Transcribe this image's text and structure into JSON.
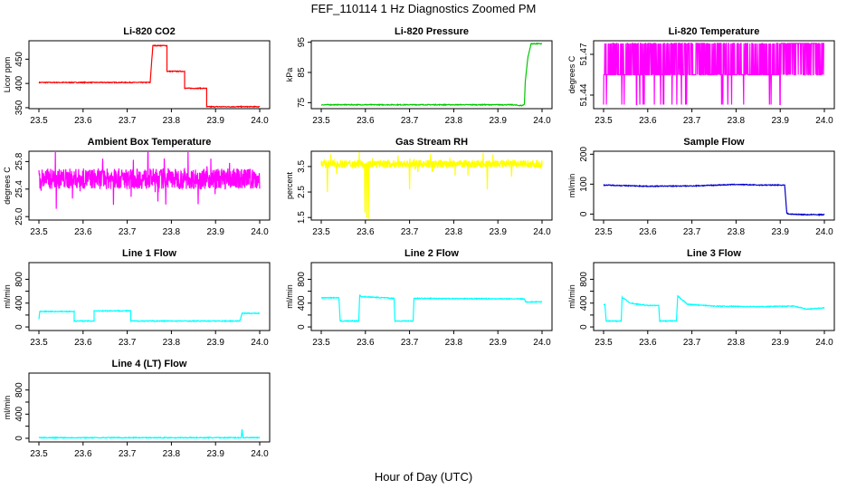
{
  "figure": {
    "title": "FEF_110114  1 Hz Diagnostics Zoomed PM",
    "xlabel": "Hour of Day (UTC)"
  },
  "chart_data": [
    {
      "type": "line",
      "title": "Li-820 CO2",
      "ylabel": "Licor ppm",
      "color": "#ff0000",
      "xlim": [
        23.5,
        24.0
      ],
      "ylim": [
        348,
        488
      ],
      "xticks": [
        23.5,
        23.6,
        23.7,
        23.8,
        23.9,
        24.0
      ],
      "yticks": [
        350,
        400,
        450
      ],
      "ytick_labels": [
        "350",
        "400",
        "450"
      ],
      "series": [
        {
          "x": [
            23.5,
            23.752,
            23.752,
            23.758,
            23.758,
            23.79,
            23.79,
            23.83,
            23.83,
            23.88,
            23.88,
            24.0
          ],
          "y": [
            402,
            402,
            402,
            478,
            478,
            478,
            425,
            425,
            390,
            390,
            352,
            352
          ]
        }
      ]
    },
    {
      "type": "line",
      "title": "Li-820 Pressure",
      "ylabel": "kPa",
      "color": "#00c800",
      "xlim": [
        23.5,
        24.0
      ],
      "ylim": [
        73,
        95.5
      ],
      "xticks": [
        23.5,
        23.6,
        23.7,
        23.8,
        23.9,
        24.0
      ],
      "yticks": [
        75,
        85,
        95
      ],
      "ytick_labels": [
        "75",
        "85",
        "95"
      ],
      "series": [
        {
          "x": [
            23.5,
            23.9,
            23.93,
            23.955,
            23.96,
            23.962,
            23.968,
            23.975,
            24.0
          ],
          "y": [
            74.3,
            74.3,
            74.3,
            74.0,
            74.5,
            82,
            90,
            94.5,
            94.5
          ]
        }
      ]
    },
    {
      "type": "line",
      "title": "Li-820 Temperature",
      "ylabel": "degrees C",
      "color": "#ff00ff",
      "xlim": [
        23.5,
        24.0
      ],
      "ylim": [
        51.43,
        51.48
      ],
      "xticks": [
        23.5,
        23.6,
        23.7,
        23.8,
        23.9,
        24.0
      ],
      "yticks": [
        51.44,
        51.47
      ],
      "ytick_labels": [
        "51.44",
        "51.47"
      ],
      "base": 51.455,
      "upper": 51.478,
      "lower": 51.433,
      "series": [
        {
          "x": [
            23.5,
            24.0
          ],
          "y": [
            51.455,
            51.455
          ]
        }
      ]
    },
    {
      "type": "line",
      "title": "Ambient Box Temperature",
      "ylabel": "degrees C",
      "color": "#ff00ff",
      "xlim": [
        23.5,
        24.0
      ],
      "ylim": [
        24.95,
        25.95
      ],
      "xticks": [
        23.5,
        23.6,
        23.7,
        23.8,
        23.9,
        24.0
      ],
      "yticks": [
        25.0,
        25.4,
        25.8
      ],
      "ytick_labels": [
        "25.0",
        "25.4",
        "25.8"
      ],
      "base": 25.55,
      "noise": 0.15,
      "series": [
        {
          "x": [
            23.5,
            24.0
          ],
          "y": [
            25.55,
            25.55
          ]
        }
      ]
    },
    {
      "type": "line",
      "title": "Gas Stream RH",
      "ylabel": "percent",
      "color": "#ffff00",
      "xlim": [
        23.5,
        24.0
      ],
      "ylim": [
        1.4,
        4.1
      ],
      "xticks": [
        23.5,
        23.6,
        23.7,
        23.8,
        23.9,
        24.0
      ],
      "yticks": [
        1.5,
        2.5,
        3.5
      ],
      "ytick_labels": [
        "1.5",
        "2.5",
        "3.5"
      ],
      "base": 3.6,
      "noise": 0.15,
      "series": [
        {
          "x": [
            23.5,
            24.0
          ],
          "y": [
            3.6,
            3.6
          ]
        }
      ],
      "dips": [
        {
          "x": 23.513,
          "y": 2.5
        },
        {
          "x": 23.598,
          "y": 1.7
        },
        {
          "x": 23.602,
          "y": 1.5
        },
        {
          "x": 23.606,
          "y": 1.45
        },
        {
          "x": 23.699,
          "y": 2.6
        },
        {
          "x": 23.875,
          "y": 2.6
        },
        {
          "x": 23.93,
          "y": 3.1
        }
      ]
    },
    {
      "type": "line",
      "title": "Sample Flow",
      "ylabel": "ml/min",
      "color": "#0000cc",
      "xlim": [
        23.5,
        24.0
      ],
      "ylim": [
        -20,
        210
      ],
      "xticks": [
        23.5,
        23.6,
        23.7,
        23.8,
        23.9,
        24.0
      ],
      "yticks": [
        0,
        100,
        200
      ],
      "ytick_labels": [
        "0",
        "100",
        "200"
      ],
      "series": [
        {
          "x": [
            23.5,
            23.6,
            23.7,
            23.8,
            23.85,
            23.91,
            23.915,
            23.92,
            23.96,
            24.0
          ],
          "y": [
            97,
            93,
            94,
            99,
            97,
            97,
            3,
            0,
            -2,
            -2
          ]
        }
      ]
    },
    {
      "type": "line",
      "title": "Line 1 Flow",
      "ylabel": "ml/min",
      "color": "#00ffff",
      "xlim": [
        23.5,
        24.0
      ],
      "ylim": [
        -60,
        1080
      ],
      "xticks": [
        23.5,
        23.6,
        23.7,
        23.8,
        23.9,
        24.0
      ],
      "yticks": [
        0,
        200,
        400,
        600,
        800
      ],
      "ytick_labels": [
        "0",
        "400",
        "800"
      ],
      "series": [
        {
          "x": [
            23.5,
            23.502,
            23.58,
            23.58,
            23.625,
            23.625,
            23.708,
            23.708,
            23.955,
            23.96,
            24.0
          ],
          "y": [
            130,
            260,
            260,
            100,
            100,
            270,
            270,
            100,
            100,
            230,
            230
          ]
        }
      ]
    },
    {
      "type": "line",
      "title": "Line 2 Flow",
      "ylabel": "ml/min",
      "color": "#00ffff",
      "xlim": [
        23.5,
        24.0
      ],
      "ylim": [
        -60,
        1080
      ],
      "xticks": [
        23.5,
        23.6,
        23.7,
        23.8,
        23.9,
        24.0
      ],
      "yticks": [
        0,
        200,
        400,
        600,
        800
      ],
      "ytick_labels": [
        "0",
        "400",
        "800"
      ],
      "series": [
        {
          "x": [
            23.5,
            23.54,
            23.543,
            23.585,
            23.587,
            23.59,
            23.665,
            23.667,
            23.708,
            23.71,
            23.96,
            23.963,
            24.0
          ],
          "y": [
            490,
            490,
            100,
            100,
            540,
            510,
            480,
            100,
            100,
            480,
            470,
            420,
            420
          ]
        }
      ]
    },
    {
      "type": "line",
      "title": "Line 3 Flow",
      "ylabel": "ml/min",
      "color": "#00ffff",
      "xlim": [
        23.5,
        24.0
      ],
      "ylim": [
        -60,
        1080
      ],
      "xticks": [
        23.5,
        23.6,
        23.7,
        23.8,
        23.9,
        24.0
      ],
      "yticks": [
        0,
        200,
        400,
        600,
        800
      ],
      "ytick_labels": [
        "0",
        "400",
        "800"
      ],
      "series": [
        {
          "x": [
            23.5,
            23.503,
            23.506,
            23.54,
            23.542,
            23.56,
            23.6,
            23.625,
            23.627,
            23.665,
            23.668,
            23.69,
            23.75,
            23.85,
            23.93,
            23.96,
            24.0
          ],
          "y": [
            380,
            380,
            100,
            100,
            500,
            400,
            360,
            360,
            100,
            100,
            520,
            380,
            350,
            340,
            350,
            300,
            320
          ]
        }
      ]
    },
    {
      "type": "line",
      "title": "Line 4 (LT) Flow",
      "ylabel": "ml/min",
      "color": "#00ffff",
      "xlim": [
        23.5,
        24.0
      ],
      "ylim": [
        -60,
        1080
      ],
      "xticks": [
        23.5,
        23.6,
        23.7,
        23.8,
        23.9,
        24.0
      ],
      "yticks": [
        0,
        200,
        400,
        600,
        800
      ],
      "ytick_labels": [
        "0",
        "400",
        "800"
      ],
      "series": [
        {
          "x": [
            23.5,
            23.958,
            23.96,
            23.962,
            24.0
          ],
          "y": [
            10,
            10,
            150,
            10,
            10
          ]
        }
      ]
    }
  ]
}
